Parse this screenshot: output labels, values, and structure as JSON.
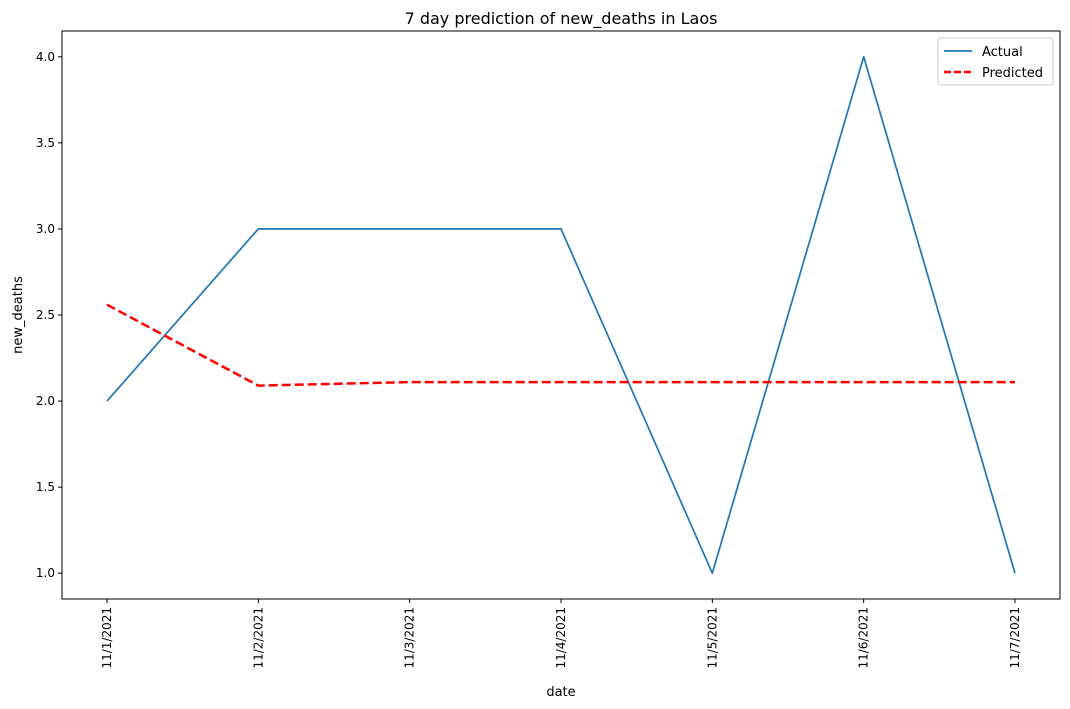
{
  "chart_data": {
    "type": "line",
    "title": "7 day prediction of new_deaths in Laos",
    "xlabel": "date",
    "ylabel": "new_deaths",
    "x": [
      "11/1/2021",
      "11/2/2021",
      "11/3/2021",
      "11/4/2021",
      "11/5/2021",
      "11/6/2021",
      "11/7/2021"
    ],
    "yticks": [
      "1.0",
      "1.5",
      "2.0",
      "2.5",
      "3.0",
      "3.5",
      "4.0"
    ],
    "ylim": [
      0.85,
      4.15
    ],
    "grid": false,
    "legend_position": "top-right",
    "series": [
      {
        "name": "Actual",
        "values": [
          2,
          3,
          3,
          3,
          1,
          4,
          1
        ],
        "color": "#1f77b4",
        "style": "solid"
      },
      {
        "name": "Predicted",
        "values": [
          2.56,
          2.09,
          2.11,
          2.11,
          2.11,
          2.11,
          2.11
        ],
        "color": "#ff0000",
        "style": "dashed"
      }
    ]
  }
}
